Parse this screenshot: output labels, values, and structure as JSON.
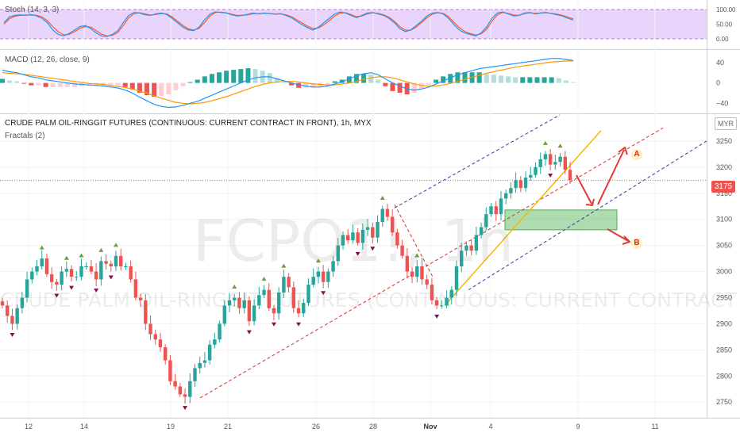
{
  "header": {
    "title": "CRUDE PALM OIL-RINGGIT FUTURES (CONTINUOUS: CURRENT CONTRACT IN FRONT), 1h, MYX",
    "fractals_label": "Fractals (2)",
    "currency": "MYR"
  },
  "watermark": {
    "symbol": "FCPO1!, 1h",
    "description": "CRUDE PALM OIL-RINGGIT FUTURES (CONTINUOUS: CURRENT CONTRACT IN FRONT)"
  },
  "stoch": {
    "label": "Stoch (14, 3, 3)",
    "ticks": [
      "100.00",
      "50.00",
      "0.00"
    ]
  },
  "macd": {
    "label": "MACD (12, 26, close, 9)",
    "ticks": [
      "40",
      "0",
      "−40"
    ]
  },
  "price_axis": {
    "ticks": [
      "3250",
      "3200",
      "3150",
      "3100",
      "3050",
      "3000",
      "2950",
      "2900",
      "2850",
      "2800",
      "2750"
    ],
    "last_price": "3175"
  },
  "time_axis": {
    "ticks": [
      "12",
      "14",
      "19",
      "21",
      "26",
      "28",
      "Nov",
      "4",
      "9",
      "11"
    ]
  },
  "scenarios": {
    "a": "A",
    "b": "B"
  },
  "colors": {
    "up": "#26a69a",
    "down": "#ef5350",
    "trend": "#f5b800",
    "channel": "#2c3e9e",
    "zone": "#4caf50"
  },
  "chart_data": {
    "type": "candlestick",
    "symbol": "FCPO1!",
    "interval": "1h",
    "ylim": [
      2720,
      3300
    ],
    "x_tick_labels": [
      "12",
      "14",
      "19",
      "21",
      "26",
      "28",
      "Nov",
      "4",
      "9",
      "11"
    ],
    "last_price": 3175,
    "close_series_approx": [
      2935,
      2915,
      2900,
      2930,
      2950,
      2985,
      3000,
      3010,
      3025,
      2995,
      2980,
      2975,
      3000,
      3005,
      2990,
      2990,
      3010,
      3010,
      3000,
      2985,
      3020,
      3015,
      3010,
      3030,
      3010,
      3010,
      2985,
      2950,
      2945,
      2900,
      2880,
      2870,
      2855,
      2830,
      2790,
      2780,
      2765,
      2760,
      2790,
      2815,
      2825,
      2830,
      2860,
      2870,
      2900,
      2935,
      2945,
      2950,
      2930,
      2945,
      2905,
      2935,
      2955,
      2965,
      2930,
      2920,
      2960,
      2990,
      2970,
      2930,
      2920,
      2940,
      2975,
      2990,
      3000,
      2980,
      3000,
      3020,
      3050,
      3070,
      3060,
      3075,
      3055,
      3080,
      3085,
      3065,
      3095,
      3120,
      3105,
      3075,
      3050,
      3030,
      3000,
      2990,
      3010,
      2985,
      2975,
      2945,
      2935,
      2935,
      2950,
      2965,
      3010,
      3040,
      3050,
      3040,
      3070,
      3085,
      3110,
      3125,
      3110,
      3140,
      3150,
      3160,
      3175,
      3160,
      3180,
      3185,
      3200,
      3215,
      3225,
      3205,
      3210,
      3220,
      3195,
      3175
    ],
    "stoch": {
      "ylim": [
        0,
        100
      ],
      "k": [
        55,
        75,
        80,
        82,
        80,
        83,
        78,
        70,
        55,
        30,
        15,
        10,
        18,
        30,
        42,
        45,
        35,
        20,
        10,
        8,
        15,
        28,
        55,
        80,
        90,
        88,
        82,
        80,
        85,
        88,
        83,
        70,
        55,
        40,
        30,
        28,
        40,
        65,
        85,
        92,
        90,
        88,
        82,
        78,
        80,
        84,
        88,
        85,
        88,
        86,
        84,
        86,
        80,
        72,
        60,
        48,
        38,
        30,
        40,
        55,
        70,
        85,
        92,
        88,
        80,
        72,
        80,
        88,
        90,
        85,
        80,
        70,
        55,
        35,
        25,
        30,
        45,
        60,
        78,
        88,
        90,
        85,
        70,
        48,
        30,
        20,
        15,
        10,
        20,
        40,
        70,
        88,
        92,
        85,
        78,
        80,
        88,
        90,
        85,
        88,
        90,
        86,
        82,
        78,
        70,
        64
      ],
      "d": [
        50,
        68,
        77,
        80,
        81,
        81,
        80,
        75,
        62,
        42,
        24,
        14,
        15,
        24,
        36,
        42,
        40,
        28,
        16,
        10,
        12,
        22,
        45,
        72,
        86,
        89,
        85,
        81,
        83,
        86,
        85,
        75,
        60,
        46,
        34,
        30,
        36,
        56,
        78,
        90,
        91,
        89,
        84,
        80,
        80,
        82,
        86,
        86,
        87,
        86,
        85,
        85,
        82,
        76,
        65,
        54,
        43,
        35,
        37,
        48,
        62,
        78,
        88,
        89,
        83,
        76,
        78,
        85,
        89,
        87,
        82,
        74,
        60,
        42,
        30,
        29,
        40,
        55,
        72,
        84,
        89,
        87,
        76,
        56,
        38,
        25,
        18,
        13,
        17,
        32,
        60,
        82,
        90,
        87,
        81,
        80,
        86,
        89,
        87,
        88,
        89,
        87,
        84,
        80,
        74,
        68
      ]
    },
    "macd": {
      "params": "12, 26, close, 9",
      "ylim": [
        -55,
        60
      ],
      "macd": [
        25,
        22,
        20,
        16,
        12,
        10,
        6,
        4,
        2,
        0,
        -2,
        -3,
        -4,
        -5,
        -6,
        -8,
        -10,
        -14,
        -20,
        -28,
        -35,
        -42,
        -46,
        -48,
        -47,
        -44,
        -40,
        -36,
        -30,
        -24,
        -18,
        -12,
        -6,
        0,
        6,
        10,
        12,
        12,
        8,
        4,
        0,
        -4,
        -6,
        -8,
        -8,
        -6,
        -2,
        2,
        8,
        14,
        18,
        20,
        16,
        8,
        0,
        -6,
        -12,
        -14,
        -12,
        -8,
        -2,
        4,
        10,
        16,
        20,
        24,
        28,
        30,
        32,
        34,
        36,
        38,
        40,
        42,
        44,
        46,
        48,
        48,
        46,
        44
      ],
      "signal": [
        20,
        19,
        18,
        17,
        15,
        13,
        11,
        9,
        7,
        5,
        3,
        1,
        -1,
        -2,
        -3,
        -5,
        -7,
        -9,
        -12,
        -16,
        -20,
        -25,
        -30,
        -34,
        -38,
        -40,
        -41,
        -40,
        -38,
        -35,
        -31,
        -27,
        -22,
        -17,
        -12,
        -7,
        -3,
        0,
        2,
        3,
        3,
        2,
        0,
        -2,
        -3,
        -4,
        -4,
        -2,
        0,
        3,
        7,
        10,
        12,
        12,
        10,
        6,
        2,
        -2,
        -5,
        -6,
        -6,
        -4,
        -1,
        3,
        7,
        11,
        15,
        19,
        22,
        25,
        28,
        31,
        33,
        35,
        37,
        39,
        41,
        42,
        43,
        43
      ]
    },
    "annotations": {
      "channel": "ascending channel (parallel dashed lines)",
      "trendline": "yellow ascending trendline",
      "support_zone": [
        3080,
        3118
      ],
      "scenarios": [
        "A",
        "B"
      ]
    }
  }
}
